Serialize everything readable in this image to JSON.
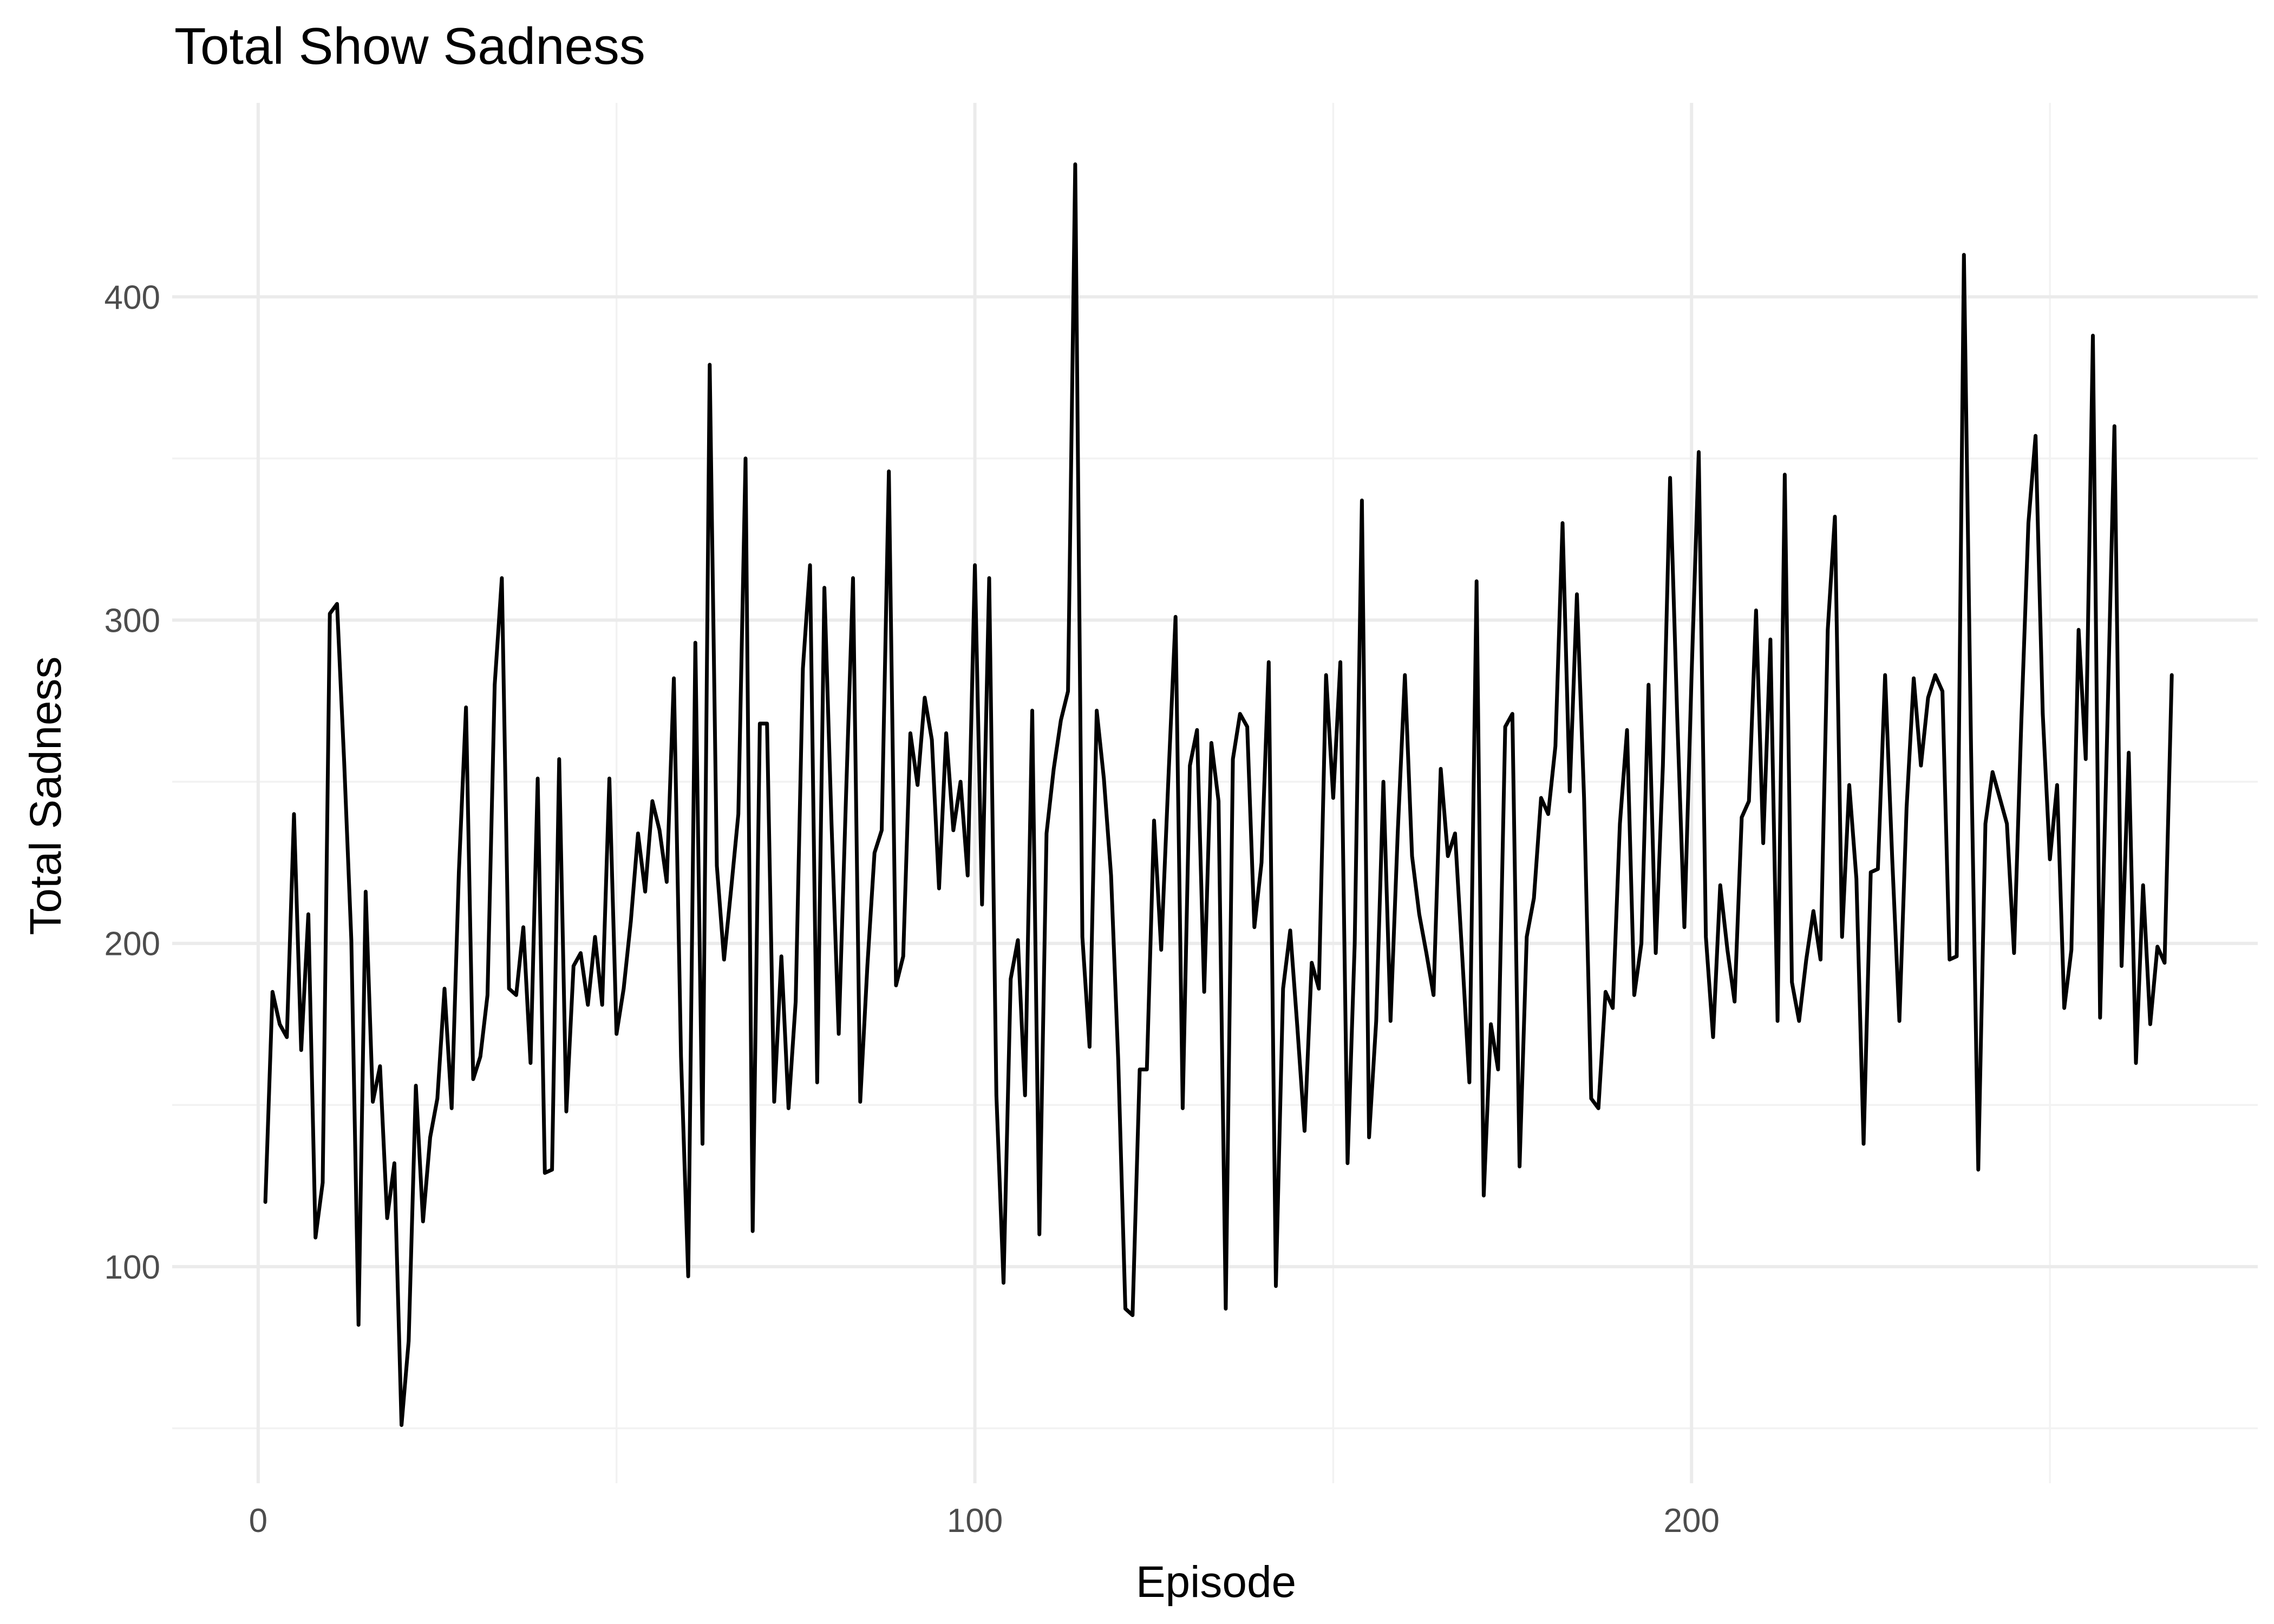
{
  "chart_data": {
    "type": "line",
    "title": "Total Show Sadness",
    "xlabel": "Episode",
    "ylabel": "Total Sadness",
    "xlim": [
      -12,
      279
    ],
    "ylim": [
      33,
      460
    ],
    "x_major_ticks": [
      0,
      100,
      200
    ],
    "x_minor_ticks": [
      50,
      150,
      250
    ],
    "y_major_ticks": [
      100,
      200,
      300,
      400
    ],
    "y_minor_ticks": [
      50,
      150,
      250,
      350
    ],
    "x_tick_labels": [
      "0",
      "100",
      "200"
    ],
    "y_tick_labels": [
      "100",
      "200",
      "300",
      "400"
    ],
    "grid": true,
    "line_color": "#000000",
    "series": [
      {
        "x_start": 1,
        "values": [
          120,
          185,
          175,
          171,
          240,
          167,
          209,
          109,
          126,
          302,
          305,
          256,
          201,
          82,
          216,
          151,
          162,
          115,
          132,
          51,
          77,
          156,
          114,
          140,
          152,
          186,
          149,
          222,
          273,
          158,
          165,
          184,
          280,
          313,
          186,
          184,
          205,
          163,
          251,
          129,
          130,
          257,
          148,
          193,
          197,
          181,
          202,
          181,
          251,
          172,
          186,
          207,
          234,
          216,
          244,
          235,
          219,
          282,
          165,
          97,
          293,
          138,
          379,
          224,
          195,
          217,
          240,
          350,
          111,
          268,
          268,
          151,
          196,
          149,
          182,
          285,
          317,
          157,
          310,
          237,
          172,
          244,
          313,
          151,
          193,
          228,
          235,
          346,
          187,
          196,
          265,
          249,
          276,
          263,
          217,
          265,
          235,
          250,
          221,
          317,
          212,
          313,
          153,
          95,
          189,
          201,
          153,
          272,
          110,
          234,
          254,
          269,
          278,
          441,
          202,
          168,
          272,
          251,
          221,
          164,
          87,
          85,
          161,
          161,
          238,
          198,
          251,
          301,
          149,
          255,
          266,
          185,
          262,
          244,
          87,
          257,
          271,
          267,
          205,
          225,
          287,
          94,
          186,
          204,
          174,
          142,
          194,
          186,
          283,
          245,
          287,
          132,
          200,
          337,
          140,
          176,
          250,
          176,
          234,
          283,
          227,
          209,
          197,
          184,
          254,
          227,
          234,
          196,
          157,
          312,
          122,
          175,
          161,
          267,
          271,
          131,
          202,
          214,
          245,
          240,
          261,
          330,
          247,
          308,
          245,
          152,
          149,
          185,
          180,
          237,
          266,
          184,
          200,
          280,
          197,
          255,
          344,
          270,
          205,
          283,
          352,
          202,
          171,
          218,
          198,
          182,
          239,
          244,
          303,
          231,
          294,
          176,
          345,
          188,
          176,
          195,
          210,
          195,
          297,
          332,
          202,
          249,
          220,
          138,
          222,
          223,
          283,
          226,
          176,
          242,
          282,
          255,
          276,
          283,
          278,
          195,
          196,
          413,
          260,
          130,
          237,
          253,
          245,
          237,
          197,
          268,
          330,
          357,
          271,
          226,
          249,
          180,
          198,
          297,
          257,
          388,
          177,
          266,
          360,
          193,
          259,
          163,
          218,
          175,
          199,
          194,
          283
        ]
      }
    ]
  }
}
